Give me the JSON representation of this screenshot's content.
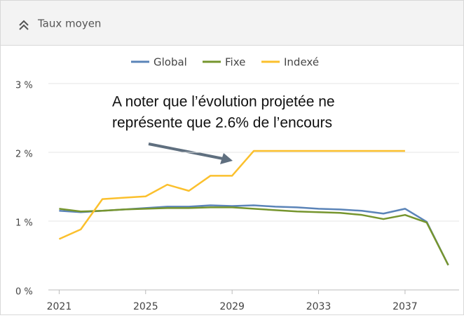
{
  "panel_title": "Taux moyen",
  "chart_data": {
    "type": "line",
    "annotation": [
      "A noter que l’évolution projetée ne",
      "représente que 2.6% de l’encours"
    ],
    "x": [
      2021,
      2022,
      2023,
      2024,
      2025,
      2026,
      2027,
      2028,
      2029,
      2030,
      2031,
      2032,
      2033,
      2034,
      2035,
      2036,
      2037,
      2038,
      2039
    ],
    "series": [
      {
        "name": "Global",
        "color": "#5b84b8",
        "values": [
          1.15,
          1.13,
          1.15,
          1.17,
          1.19,
          1.21,
          1.21,
          1.23,
          1.22,
          1.23,
          1.21,
          1.2,
          1.18,
          1.17,
          1.15,
          1.11,
          1.18,
          0.99,
          0.36
        ]
      },
      {
        "name": "Fixe",
        "color": "#76952e",
        "values": [
          1.18,
          1.14,
          1.15,
          1.17,
          1.18,
          1.19,
          1.19,
          1.2,
          1.2,
          1.18,
          1.16,
          1.14,
          1.13,
          1.12,
          1.09,
          1.03,
          1.09,
          0.98,
          0.36
        ]
      },
      {
        "name": "Indexé",
        "color": "#fbc02d",
        "values": [
          0.74,
          0.88,
          1.32,
          1.34,
          1.36,
          1.53,
          1.44,
          1.66,
          1.66,
          2.02,
          2.02,
          2.02,
          2.02,
          2.02,
          2.02,
          2.02,
          2.02,
          null,
          null
        ]
      }
    ],
    "xlim": [
      2020.5,
      2039.5
    ],
    "xticks": [
      2021,
      2025,
      2029,
      2033,
      2037
    ],
    "ylim": [
      0,
      3
    ],
    "yticks": [
      {
        "value": 0,
        "label": "0 %"
      },
      {
        "value": 1,
        "label": "1 %"
      },
      {
        "value": 2,
        "label": "2 %"
      },
      {
        "value": 3,
        "label": "3 %"
      }
    ],
    "grid": true,
    "legend": "top"
  }
}
